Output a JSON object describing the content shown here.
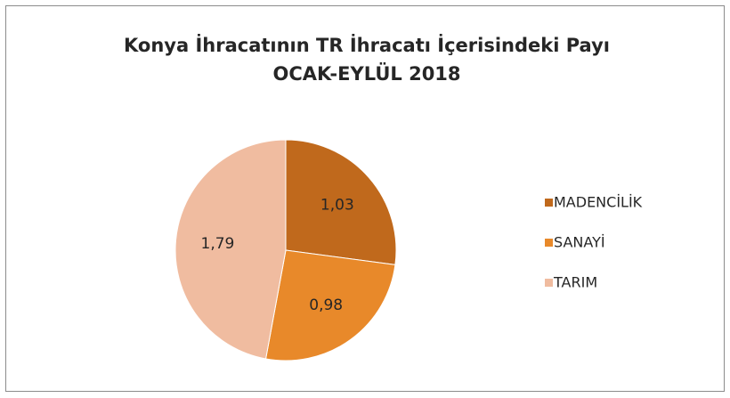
{
  "chart_data": {
    "type": "pie",
    "title": "Konya İhracatının TR İhracatı İçerisindeki Payı",
    "subtitle": "OCAK-EYLÜL 2018",
    "categories": [
      "MADENCİLİK",
      "SANAYİ",
      "TARIM"
    ],
    "values": [
      1.03,
      0.98,
      1.79
    ],
    "value_labels": [
      "1,03",
      "0,98",
      "1,79"
    ],
    "colors": [
      "#c0691c",
      "#e8892a",
      "#f0bca0"
    ],
    "legend": "right"
  }
}
